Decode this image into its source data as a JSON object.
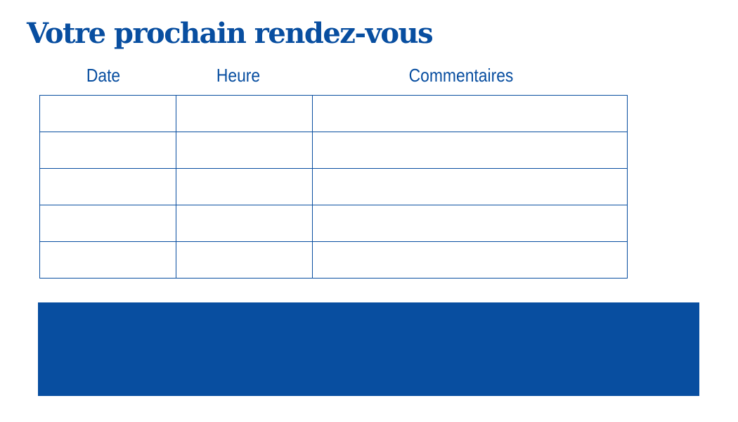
{
  "title": "Votre prochain rendez-vous",
  "table": {
    "headers": [
      "Date",
      "Heure",
      "Commentaires"
    ],
    "rows": [
      [
        "",
        "",
        ""
      ],
      [
        "",
        "",
        ""
      ],
      [
        "",
        "",
        ""
      ],
      [
        "",
        "",
        ""
      ],
      [
        "",
        "",
        ""
      ]
    ]
  },
  "colors": {
    "brand": "#084ea0"
  }
}
